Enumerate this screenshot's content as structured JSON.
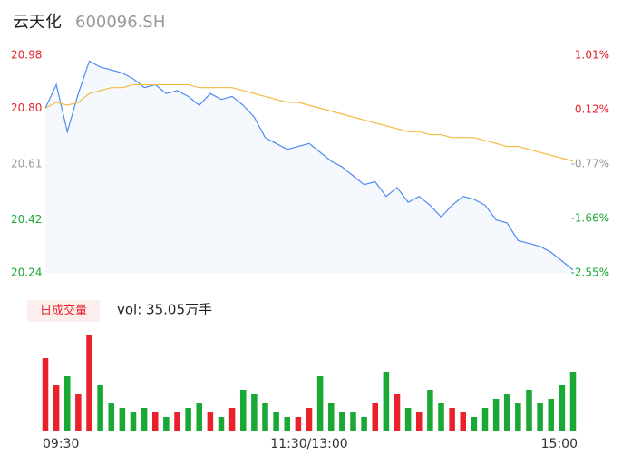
{
  "chart_data": {
    "type": "intraday",
    "title": "云天化",
    "subtitle": "600096.SH",
    "volume_label": "日成交量",
    "volume_text": "vol: 35.05万手",
    "categories": [
      "09:30",
      null,
      null,
      null,
      null,
      null,
      null,
      null,
      null,
      null,
      null,
      null,
      null,
      null,
      null,
      null,
      null,
      null,
      null,
      null,
      null,
      null,
      null,
      null,
      "11:30/13:00",
      null,
      null,
      null,
      null,
      null,
      null,
      null,
      null,
      null,
      null,
      null,
      null,
      null,
      null,
      null,
      null,
      null,
      null,
      null,
      null,
      null,
      null,
      null,
      "15:00"
    ],
    "series": [
      {
        "name": "price",
        "color": "#4c8bf0",
        "values": [
          20.8,
          20.88,
          20.72,
          20.85,
          20.96,
          20.94,
          20.93,
          20.92,
          20.9,
          20.87,
          20.88,
          20.85,
          20.86,
          20.84,
          20.81,
          20.85,
          20.83,
          20.84,
          20.81,
          20.77,
          20.7,
          20.68,
          20.66,
          20.67,
          20.68,
          20.65,
          20.62,
          20.6,
          20.57,
          20.54,
          20.55,
          20.5,
          20.53,
          20.48,
          20.5,
          20.47,
          20.43,
          20.47,
          20.5,
          20.49,
          20.47,
          20.42,
          20.41,
          20.35,
          20.34,
          20.33,
          20.31,
          20.28,
          20.25
        ]
      },
      {
        "name": "average",
        "color": "#f5b942",
        "values": [
          20.8,
          20.82,
          20.81,
          20.82,
          20.85,
          20.86,
          20.87,
          20.87,
          20.88,
          20.88,
          20.88,
          20.88,
          20.88,
          20.88,
          20.87,
          20.87,
          20.87,
          20.87,
          20.86,
          20.85,
          20.84,
          20.83,
          20.82,
          20.82,
          20.81,
          20.8,
          20.79,
          20.78,
          20.77,
          20.76,
          20.75,
          20.74,
          20.73,
          20.72,
          20.72,
          20.71,
          20.71,
          20.7,
          20.7,
          20.7,
          20.69,
          20.68,
          20.67,
          20.67,
          20.66,
          20.65,
          20.64,
          20.63,
          20.62
        ]
      }
    ],
    "volume": {
      "values": [
        1.6,
        1.0,
        1.2,
        0.8,
        2.1,
        1.0,
        0.6,
        0.5,
        0.4,
        0.5,
        0.4,
        0.3,
        0.4,
        0.5,
        0.6,
        0.4,
        0.3,
        0.5,
        0.9,
        0.8,
        0.6,
        0.4,
        0.3,
        0.3,
        0.5,
        1.2,
        0.6,
        0.4,
        0.4,
        0.3,
        0.6,
        1.3,
        0.8,
        0.5,
        0.4,
        0.9,
        0.6,
        0.5,
        0.4,
        0.3,
        0.5,
        0.7,
        0.8,
        0.6,
        0.9,
        0.6,
        0.7,
        1.0,
        1.3
      ]
    },
    "up_color": "#e8212b",
    "down_color": "#1aa834",
    "area_color": "#f5f8fd",
    "ylim": [
      20.24,
      20.98
    ],
    "yticks": [
      20.24,
      20.42,
      20.61,
      {
        "value": 20.8,
        "label": "20.80"
      },
      20.98
    ],
    "ytick_colors": [
      "#1aa834",
      "#1aa834",
      "#999999",
      "#e8212b",
      "#e8212b"
    ],
    "y2lim": [
      -2.55,
      1.01
    ],
    "y2ticks": [
      {
        "value": -2.55,
        "label": "-2.55%"
      },
      {
        "value": -1.66,
        "label": "-1.66%"
      },
      {
        "value": -0.77,
        "label": "-0.77%"
      },
      {
        "value": 0.12,
        "label": "0.12%"
      },
      {
        "value": 1.01,
        "label": "1.01%"
      }
    ]
  }
}
